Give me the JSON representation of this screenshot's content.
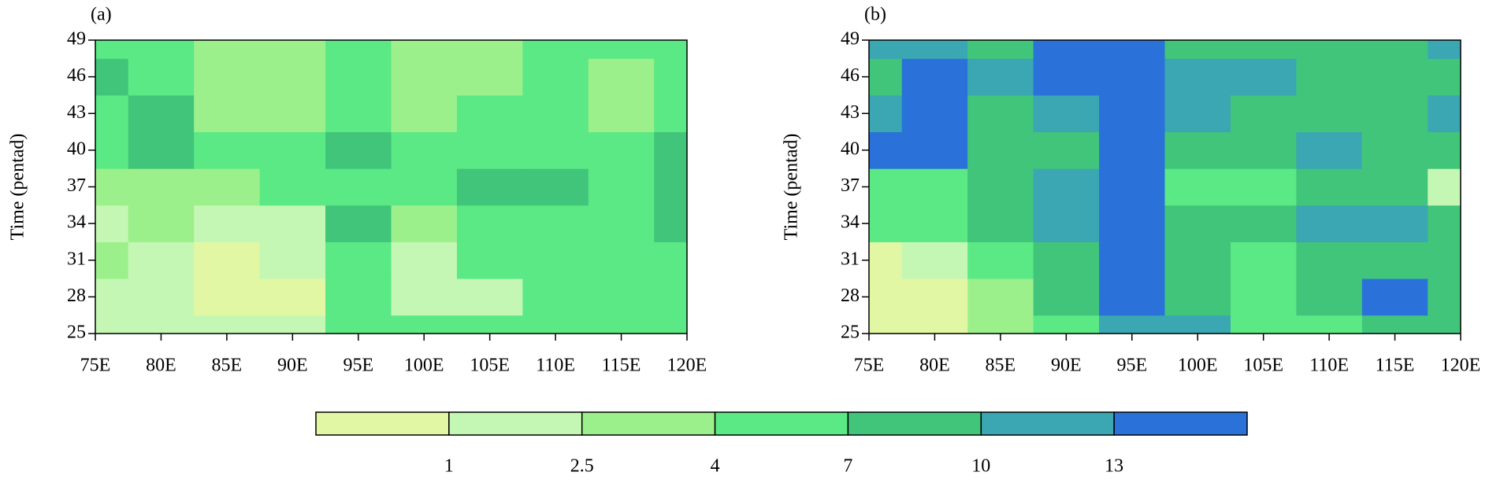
{
  "chart_data": [
    {
      "type": "contourf",
      "title": "(a)",
      "ylabel": "Time (pentad)",
      "x": [
        75,
        80,
        85,
        90,
        95,
        100,
        105,
        110,
        115,
        120
      ],
      "y": [
        25,
        28,
        31,
        34,
        37,
        40,
        43,
        46,
        49
      ],
      "z": [
        [
          2,
          2,
          2,
          2,
          5,
          5,
          5,
          5,
          5,
          5
        ],
        [
          1.5,
          2,
          0.5,
          0.5,
          5,
          2,
          2,
          5,
          5,
          5
        ],
        [
          3,
          2,
          0.5,
          2,
          5,
          2,
          5,
          5,
          5,
          5
        ],
        [
          2,
          3,
          2,
          2,
          8,
          3,
          5,
          5,
          5,
          8
        ],
        [
          3,
          3,
          3,
          5,
          5,
          5,
          8,
          8,
          5,
          8
        ],
        [
          5,
          8,
          5,
          5,
          8,
          5,
          5,
          5,
          5,
          8
        ],
        [
          5,
          8,
          3,
          3,
          5,
          3,
          5,
          5,
          3,
          5
        ],
        [
          8,
          5,
          3,
          3,
          5,
          3,
          3,
          5,
          3,
          5
        ],
        [
          5,
          5,
          3,
          3,
          5,
          3,
          3,
          5,
          5,
          5
        ]
      ],
      "xlim": [
        75,
        120
      ],
      "ylim": [
        25,
        49
      ],
      "xticks": [
        {
          "value": 75,
          "label": "75E"
        },
        {
          "value": 80,
          "label": "80E"
        },
        {
          "value": 85,
          "label": "85E"
        },
        {
          "value": 90,
          "label": "90E"
        },
        {
          "value": 95,
          "label": "95E"
        },
        {
          "value": 100,
          "label": "100E"
        },
        {
          "value": 105,
          "label": "105E"
        },
        {
          "value": 110,
          "label": "110E"
        },
        {
          "value": 115,
          "label": "115E"
        },
        {
          "value": 120,
          "label": "120E"
        }
      ],
      "yticks": [
        25,
        28,
        31,
        34,
        37,
        40,
        43,
        46,
        49
      ]
    },
    {
      "type": "contourf",
      "title": "(b)",
      "ylabel": "Time (pentad)",
      "x": [
        75,
        80,
        85,
        90,
        95,
        100,
        105,
        110,
        115,
        120
      ],
      "y": [
        25,
        28,
        31,
        34,
        37,
        40,
        43,
        46,
        49
      ],
      "z": [
        [
          0.5,
          0.5,
          3,
          5,
          11,
          11,
          5,
          5,
          8,
          8
        ],
        [
          0.5,
          0.5,
          3,
          8,
          14,
          8,
          5,
          8,
          14,
          8
        ],
        [
          0.5,
          2,
          5,
          8,
          14,
          8,
          5,
          8,
          8,
          8
        ],
        [
          5,
          5,
          8,
          11,
          14,
          8,
          8,
          11,
          11,
          8
        ],
        [
          5,
          5,
          8,
          11,
          14,
          5,
          5,
          8,
          8,
          2
        ],
        [
          14,
          14,
          8,
          8,
          14,
          8,
          8,
          11,
          8,
          8
        ],
        [
          11,
          14,
          8,
          11,
          14,
          11,
          8,
          8,
          8,
          11
        ],
        [
          8,
          14,
          11,
          14,
          14,
          11,
          11,
          8,
          8,
          8
        ],
        [
          11,
          11,
          8,
          14,
          14,
          8,
          8,
          8,
          8,
          11
        ]
      ],
      "xlim": [
        75,
        120
      ],
      "ylim": [
        25,
        49
      ],
      "xticks": [
        {
          "value": 75,
          "label": "75E"
        },
        {
          "value": 80,
          "label": "80E"
        },
        {
          "value": 85,
          "label": "85E"
        },
        {
          "value": 90,
          "label": "90E"
        },
        {
          "value": 95,
          "label": "95E"
        },
        {
          "value": 100,
          "label": "100E"
        },
        {
          "value": 105,
          "label": "105E"
        },
        {
          "value": 110,
          "label": "110E"
        },
        {
          "value": 115,
          "label": "115E"
        },
        {
          "value": 120,
          "label": "120E"
        }
      ],
      "yticks": [
        25,
        28,
        31,
        34,
        37,
        40,
        43,
        46,
        49
      ]
    },
    {
      "type": "colorbar",
      "levels": [
        1,
        2.5,
        4,
        7,
        10,
        13
      ],
      "colors": [
        "#e2f7a4",
        "#c4f7b4",
        "#9cf08c",
        "#5ae984",
        "#41c57a",
        "#3aa7b2",
        "#2a72d9"
      ]
    }
  ]
}
